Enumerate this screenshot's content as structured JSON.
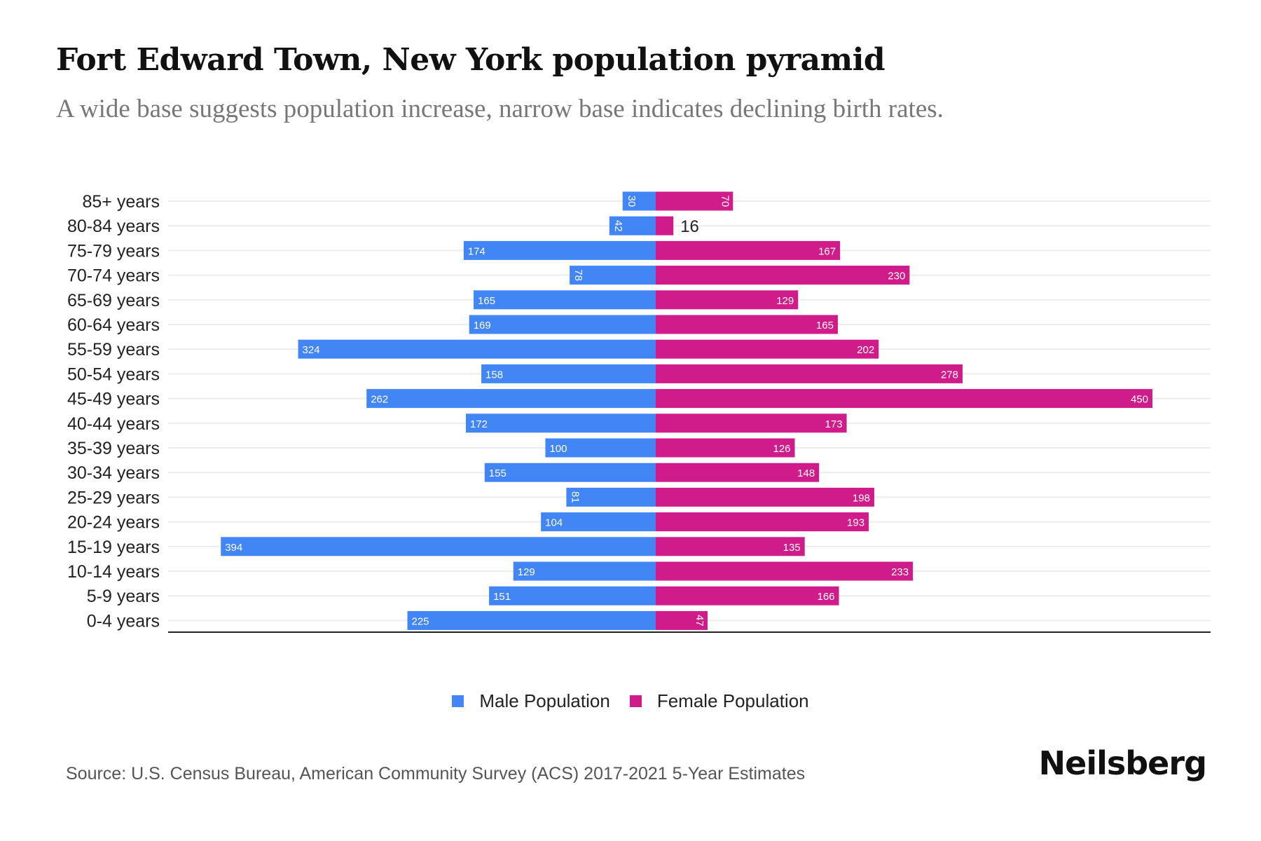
{
  "chart_data": {
    "type": "bar",
    "orientation": "horizontal",
    "subtype": "population-pyramid",
    "title": "Fort Edward Town, New York population pyramid",
    "subtitle": "A wide base suggests population increase, narrow base indicates declining birth rates.",
    "categories": [
      "85+ years",
      "80-84 years",
      "75-79 years",
      "70-74 years",
      "65-69 years",
      "60-64 years",
      "55-59 years",
      "50-54 years",
      "45-49 years",
      "40-44 years",
      "35-39 years",
      "30-34 years",
      "25-29 years",
      "20-24 years",
      "15-19 years",
      "10-14 years",
      "5-9 years",
      "0-4 years"
    ],
    "series": [
      {
        "name": "Male Population",
        "color": "#4285f4",
        "side": "left",
        "values": [
          30,
          42,
          174,
          78,
          165,
          169,
          324,
          158,
          262,
          172,
          100,
          155,
          81,
          104,
          394,
          129,
          151,
          225
        ]
      },
      {
        "name": "Female Population",
        "color": "#d01c8b",
        "side": "right",
        "values": [
          70,
          16,
          167,
          230,
          129,
          165,
          202,
          278,
          450,
          173,
          126,
          148,
          198,
          193,
          135,
          233,
          166,
          47
        ]
      }
    ],
    "xlabel": "",
    "ylabel": "",
    "xlim": [
      -450,
      450
    ],
    "grid": true,
    "legend": "bottom-center"
  },
  "source": "Source: U.S. Census Bureau, American Community Survey (ACS) 2017-2021 5-Year Estimates",
  "brand": "Neilsberg"
}
